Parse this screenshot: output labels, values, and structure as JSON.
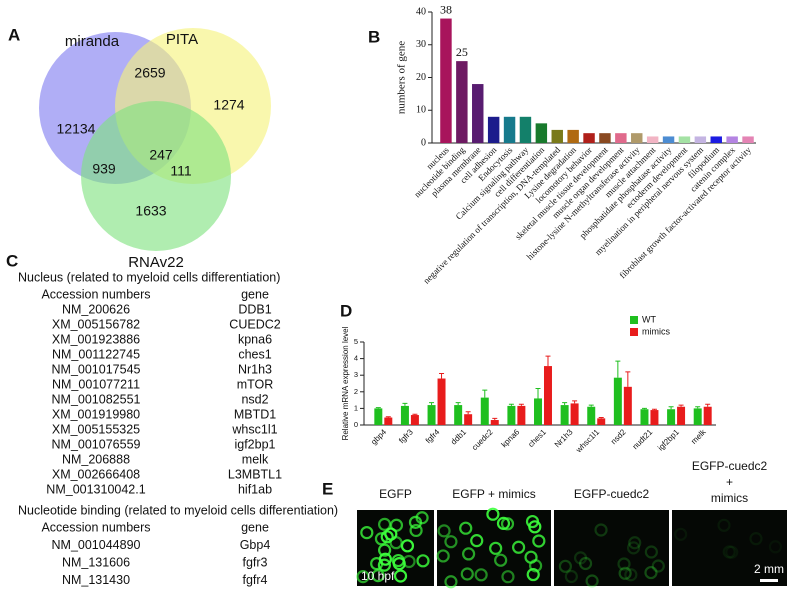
{
  "panels": [
    "A",
    "B",
    "C",
    "D",
    "E"
  ],
  "venn": {
    "sets": [
      {
        "name": "miranda",
        "color": "#7f7cf0"
      },
      {
        "name": "PITA",
        "color": "#f6f27a"
      },
      {
        "name": "RNAv22",
        "color": "#7fe27f"
      }
    ],
    "regions": [
      12134,
      2659,
      1274,
      939,
      247,
      111,
      1633
    ]
  },
  "chart_data": [
    {
      "type": "bar",
      "ylabel": "numbers of gene",
      "categories": [
        "nucleus",
        "nucleotide binding",
        "plasma membrane",
        "cell adhesion",
        "Endocytosis",
        "Calcium signaling pathway",
        "cell differentiation",
        "negative regulation of transcription, DNA-templated",
        "Lysine degradation",
        "locomotory behavior",
        "skeletal muscle tissue development",
        "muscle organ development",
        "histone-lysine N-methyltransferase activity",
        "muscle attachment",
        "phosphatidate phosphatase activity",
        "ectoderm development",
        "myelination in peripheral nervous system",
        "filopodium",
        "catenin complex",
        "fibroblast growth factor-activated receptor activity"
      ],
      "values": [
        38,
        25,
        18,
        8,
        8,
        8,
        6,
        4,
        4,
        3,
        3,
        3,
        3,
        2,
        2,
        2,
        2,
        2,
        2,
        2
      ],
      "value_labels": [
        "38",
        "25",
        null,
        null,
        null,
        null,
        null,
        null,
        null,
        null,
        null,
        null,
        null,
        null,
        null,
        null,
        null,
        null,
        null,
        null
      ],
      "colors": [
        "#a8145c",
        "#6e1a62",
        "#581c70",
        "#1c1c8c",
        "#167a8c",
        "#13806a",
        "#187a2c",
        "#7a7a1a",
        "#b06a12",
        "#b0201a",
        "#8a4a22",
        "#e06a8c",
        "#b09a6a",
        "#f2b4c4",
        "#4c8cd2",
        "#a4e2a4",
        "#c4b4e2",
        "#1c1ce2",
        "#b484e2",
        "#e484b4"
      ],
      "ylim": [
        0,
        40
      ],
      "yticks": [
        0,
        10,
        20,
        30,
        40
      ]
    },
    {
      "type": "grouped_bar",
      "ylabel": "Relative mRNA expression level",
      "categories": [
        "gbp4",
        "fgfr3",
        "fgfr4",
        "ddb1",
        "cuedc2",
        "kpna6",
        "ches1",
        "Nr1h3",
        "whsc1l1",
        "nsd2",
        "nudt21",
        "igf2bp1",
        "melk"
      ],
      "series": [
        {
          "name": "WT",
          "color": "#1fbf1f",
          "values": [
            1.0,
            1.15,
            1.2,
            1.2,
            1.65,
            1.15,
            1.6,
            1.2,
            1.1,
            2.85,
            0.95,
            0.95,
            1.0
          ],
          "errors": [
            0.05,
            0.15,
            0.15,
            0.15,
            0.45,
            0.1,
            0.6,
            0.15,
            0.1,
            1.0,
            0.05,
            0.15,
            0.1
          ]
        },
        {
          "name": "mimics",
          "color": "#e81c1c",
          "values": [
            0.45,
            0.6,
            2.8,
            0.65,
            0.3,
            1.15,
            3.55,
            1.3,
            0.4,
            2.3,
            0.9,
            1.1,
            1.1
          ],
          "errors": [
            0.05,
            0.05,
            0.3,
            0.15,
            0.1,
            0.1,
            0.6,
            0.15,
            0.05,
            0.9,
            0.05,
            0.1,
            0.15
          ]
        }
      ],
      "ylim": [
        0,
        5
      ],
      "yticks": [
        0,
        1,
        2,
        3,
        4,
        5
      ],
      "legend": "top-right"
    }
  ],
  "table": {
    "sections": [
      {
        "title": "Nucleus (related to myeloid cells differentiation)",
        "header": [
          "Accession numbers",
          "gene"
        ],
        "rows": [
          [
            "NM_200626",
            "DDB1"
          ],
          [
            "XM_005156782",
            "CUEDC2"
          ],
          [
            "XM_001923886",
            "kpna6"
          ],
          [
            "NM_001122745",
            "ches1"
          ],
          [
            "NM_001017545",
            "Nr1h3"
          ],
          [
            "NM_001077211",
            "mTOR"
          ],
          [
            "NM_001082551",
            "nsd2"
          ],
          [
            "XM_001919980",
            "MBTD1"
          ],
          [
            "XM_005155325",
            "whsc1l1"
          ],
          [
            "NM_001076559",
            "igf2bp1"
          ],
          [
            "NM_206888",
            "melk"
          ],
          [
            "XM_002666408",
            "L3MBTL1"
          ],
          [
            "NM_001310042.1",
            "hif1ab"
          ]
        ]
      },
      {
        "title": "Nucleotide binding (related to myeloid cells differentiation)",
        "header": [
          "Accession numbers",
          "gene"
        ],
        "rows": [
          [
            "NM_001044890",
            "Gbp4"
          ],
          [
            "NM_131606",
            "fgfr3"
          ],
          [
            "NM_131430",
            "fgfr4"
          ]
        ]
      }
    ]
  },
  "images": {
    "labels": [
      [
        "EGFP"
      ],
      [
        "EGFP + mimics"
      ],
      [
        "EGFP-cuedc2"
      ],
      [
        "EGFP-cuedc2",
        "+",
        "mimics"
      ]
    ],
    "stage": "10 hpf",
    "scale": "2 mm"
  }
}
